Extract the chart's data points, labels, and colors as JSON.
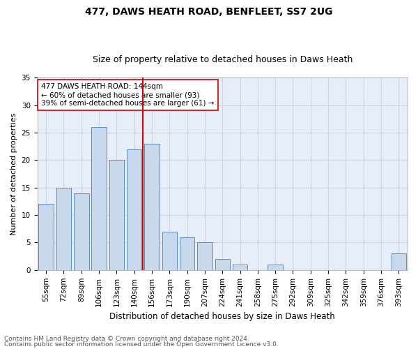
{
  "title1": "477, DAWS HEATH ROAD, BENFLEET, SS7 2UG",
  "title2": "Size of property relative to detached houses in Daws Heath",
  "xlabel": "Distribution of detached houses by size in Daws Heath",
  "ylabel": "Number of detached properties",
  "categories": [
    "55sqm",
    "72sqm",
    "89sqm",
    "106sqm",
    "123sqm",
    "140sqm",
    "156sqm",
    "173sqm",
    "190sqm",
    "207sqm",
    "224sqm",
    "241sqm",
    "258sqm",
    "275sqm",
    "292sqm",
    "309sqm",
    "325sqm",
    "342sqm",
    "359sqm",
    "376sqm",
    "393sqm"
  ],
  "values": [
    12,
    15,
    14,
    26,
    20,
    22,
    23,
    7,
    6,
    5,
    2,
    1,
    0,
    1,
    0,
    0,
    0,
    0,
    0,
    0,
    3
  ],
  "bar_color": "#c9d9ed",
  "bar_edge_color": "#5b8ec4",
  "vline_x": 5.5,
  "vline_color": "#cc0000",
  "annotation_text": "477 DAWS HEATH ROAD: 144sqm\n← 60% of detached houses are smaller (93)\n39% of semi-detached houses are larger (61) →",
  "annotation_box_edge": "#cc0000",
  "ylim": [
    0,
    35
  ],
  "yticks": [
    0,
    5,
    10,
    15,
    20,
    25,
    30,
    35
  ],
  "footer1": "Contains HM Land Registry data © Crown copyright and database right 2024.",
  "footer2": "Contains public sector information licensed under the Open Government Licence v3.0.",
  "bg_color": "#ffffff",
  "grid_color": "#c8d4e8",
  "title1_fontsize": 10,
  "title2_fontsize": 9,
  "axis_fontsize": 7.5,
  "ylabel_fontsize": 8,
  "xlabel_fontsize": 8.5,
  "annotation_fontsize": 7.5,
  "footer_fontsize": 6.5
}
